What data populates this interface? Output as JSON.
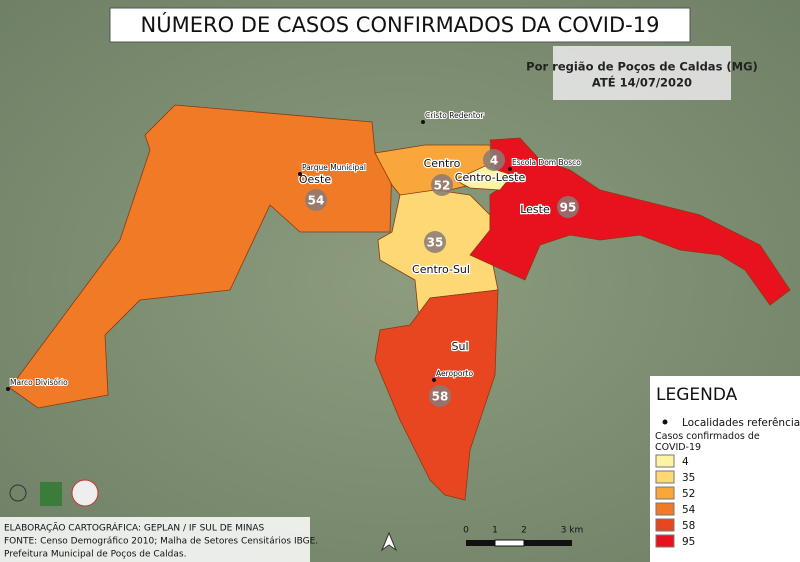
{
  "title": "NÚMERO DE CASOS CONFIRMADOS DA COVID-19",
  "subtitle": [
    "Por região de Poços de Caldas (MG)",
    "ATÉ 14/07/2020"
  ],
  "regions": [
    {
      "name": "Oeste",
      "cases": 54
    },
    {
      "name": "Centro",
      "cases": 52
    },
    {
      "name": "Centro-Sul",
      "cases": 35
    },
    {
      "name": "Leste",
      "cases": 95
    },
    {
      "name": "Sul",
      "cases": 58
    },
    {
      "name": "Centro-Leste",
      "cases": 4
    }
  ],
  "landmarks": [
    "Cristo Redentor",
    "Parque Municipal",
    "Escola Dom Bosco",
    "Aeroporto",
    "Marco Divisório"
  ],
  "legend": {
    "title": "LEGENDA",
    "point_label": "Localidades referência",
    "cases_title": "Casos confirmados de COVID-19",
    "classes": [
      {
        "value": 4,
        "color": "#fdf3a2"
      },
      {
        "value": 35,
        "color": "#fed874"
      },
      {
        "value": 52,
        "color": "#f9a63a"
      },
      {
        "value": 54,
        "color": "#f07a26"
      },
      {
        "value": 58,
        "color": "#e84621"
      },
      {
        "value": 95,
        "color": "#e8121f"
      }
    ]
  },
  "credits": [
    "ELABORAÇÃO CARTOGRÁFICA: GEPLAN / IF SUL DE MINAS",
    "FONTE: Censo Demográfico 2010; Malha de Setores Censitários IBGE.",
    "Prefeitura Municipal de Poços de Caldas."
  ],
  "scale_bar": [
    "0",
    "1",
    "2",
    "3 km"
  ]
}
